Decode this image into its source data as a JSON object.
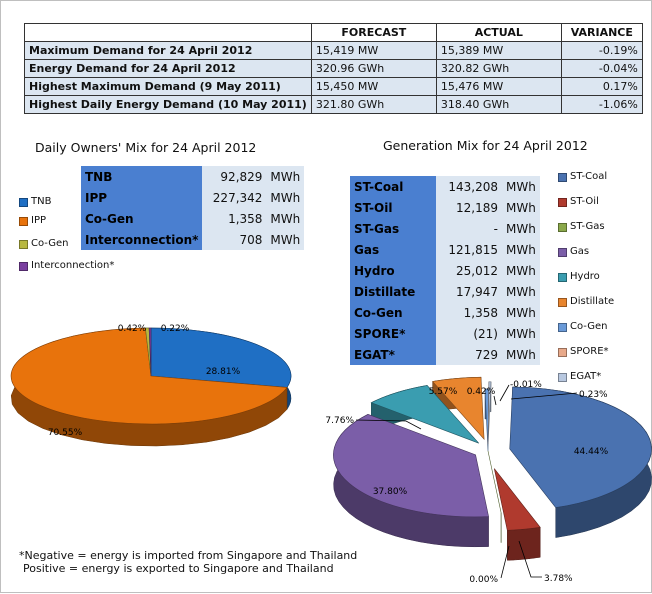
{
  "summary": {
    "headers": [
      "",
      "FORECAST",
      "ACTUAL",
      "VARIANCE"
    ],
    "rows": [
      {
        "label": "Maximum Demand for 24 April 2012",
        "forecast": "15,419",
        "forecast_unit": "MW",
        "actual": "15,389",
        "actual_unit": "MW",
        "variance": "-0.19%"
      },
      {
        "label": "Energy Demand for 24 April 2012",
        "forecast": "320.96",
        "forecast_unit": "GWh",
        "actual": "320.82",
        "actual_unit": "GWh",
        "variance": "-0.04%"
      },
      {
        "label": "Highest Maximum Demand (9 May 2011)",
        "forecast": "15,450",
        "forecast_unit": "MW",
        "actual": "15,476",
        "actual_unit": "MW",
        "variance": "0.17%"
      },
      {
        "label": "Highest Daily Energy Demand (10 May 2011)",
        "forecast": "321.80",
        "forecast_unit": "GWh",
        "actual": "318.40",
        "actual_unit": "GWh",
        "variance": "-1.06%"
      }
    ]
  },
  "owners_box": {
    "rows": [
      {
        "name": "TNB",
        "value": "92,829",
        "unit": "MWh"
      },
      {
        "name": "IPP",
        "value": "227,342",
        "unit": "MWh"
      },
      {
        "name": "Co-Gen",
        "value": "1,358",
        "unit": "MWh"
      },
      {
        "name": "Interconnection*",
        "value": "708",
        "unit": "MWh"
      }
    ]
  },
  "generation_box": {
    "rows": [
      {
        "name": "ST-Coal",
        "value": "143,208",
        "unit": "MWh"
      },
      {
        "name": "ST-Oil",
        "value": "12,189",
        "unit": "MWh"
      },
      {
        "name": "ST-Gas",
        "value": "-",
        "unit": "MWh"
      },
      {
        "name": "Gas",
        "value": "121,815",
        "unit": "MWh"
      },
      {
        "name": "Hydro",
        "value": "25,012",
        "unit": "MWh"
      },
      {
        "name": "Distillate",
        "value": "17,947",
        "unit": "MWh"
      },
      {
        "name": "Co-Gen",
        "value": "1,358",
        "unit": "MWh"
      },
      {
        "name": "SPORE*",
        "value": "(21)",
        "unit": "MWh"
      },
      {
        "name": "EGAT*",
        "value": "729",
        "unit": "MWh"
      }
    ]
  },
  "notes": [
    "*Negative = energy is imported from Singapore and Thailand",
    "Positive = energy is exported to Singapore and Thailand"
  ],
  "chart_data": [
    {
      "type": "pie",
      "title": "Daily Owners' Mix for 24 April 2012",
      "categories": [
        "TNB",
        "IPP",
        "Co-Gen",
        "Interconnection*"
      ],
      "values": [
        28.81,
        70.55,
        0.42,
        0.22
      ],
      "labels": [
        "28.81%",
        "70.55%",
        "0.42%",
        "0.22%"
      ],
      "colors": [
        "#1f6fc4",
        "#e8730c",
        "#b8b840",
        "#7a3fa0"
      ],
      "legend_position": "left"
    },
    {
      "type": "pie",
      "title": "Generation Mix for 24 April 2012",
      "categories": [
        "ST-Coal",
        "ST-Oil",
        "ST-Gas",
        "Gas",
        "Hydro",
        "Distillate",
        "Co-Gen",
        "SPORE*",
        "EGAT*"
      ],
      "values": [
        44.44,
        3.78,
        0.0,
        37.8,
        7.76,
        5.57,
        0.42,
        -0.01,
        0.23
      ],
      "labels": [
        "44.44%",
        "3.78%",
        "0.00%",
        "37.80%",
        "7.76%",
        "5.57%",
        "0.42%",
        "-0.01%",
        "0.23%"
      ],
      "colors": [
        "#4a72b0",
        "#b03a2e",
        "#8aa84a",
        "#7b5ea8",
        "#3a9db0",
        "#e8852e",
        "#6a9ad8",
        "#e8a98a",
        "#b8c8e0"
      ],
      "legend_position": "right"
    }
  ]
}
